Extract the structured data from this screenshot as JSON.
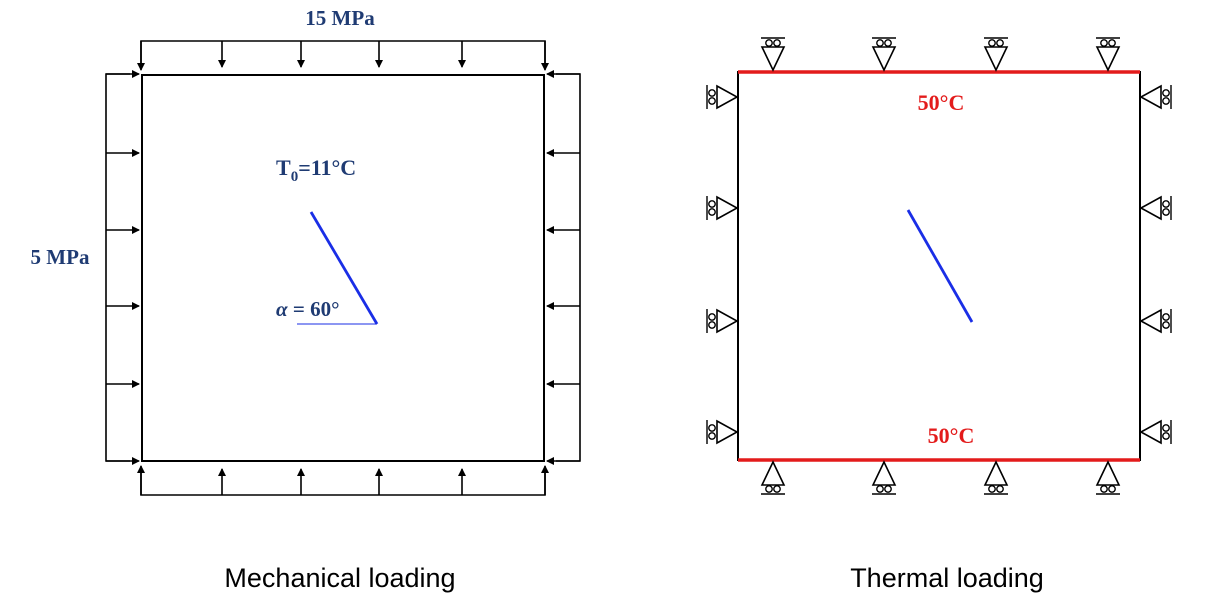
{
  "mechanical": {
    "top_load": "15 MPa",
    "side_load": "5 MPa",
    "initial_temp": {
      "symbol": "T",
      "subscript": "0",
      "value": "=11°C"
    },
    "angle": {
      "symbol": "α",
      "value": " = 60°"
    },
    "caption": "Mechanical loading"
  },
  "thermal": {
    "top_temp": "50°C",
    "bottom_temp": "50°C",
    "caption": "Thermal loading"
  },
  "colors": {
    "label_navy": "#1f3b73",
    "crack_blue": "#1a2ee6",
    "hot_red": "#e31b1b",
    "line": "#000000"
  }
}
